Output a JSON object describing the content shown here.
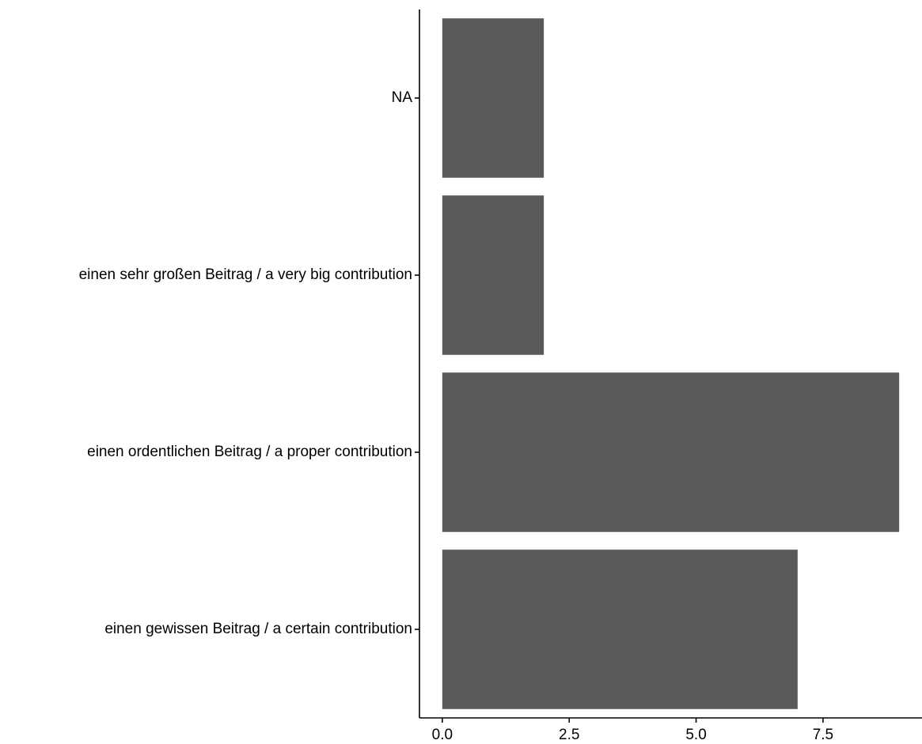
{
  "chart_data": {
    "type": "bar",
    "orientation": "horizontal",
    "categories": [
      "NA",
      "einen sehr großen Beitrag / a very big contribution",
      "einen ordentlichen Beitrag / a proper contribution",
      "einen gewissen Beitrag / a certain contribution"
    ],
    "values": [
      2,
      2,
      9,
      7
    ],
    "x_ticks": [
      "0.0",
      "2.5",
      "5.0",
      "7.5"
    ],
    "x_tick_values": [
      0,
      2.5,
      5.0,
      7.5
    ],
    "xlim": [
      -0.45,
      9.45
    ],
    "title": "",
    "xlabel": "",
    "ylabel": "",
    "grid": false,
    "bar_color": "#595959"
  }
}
